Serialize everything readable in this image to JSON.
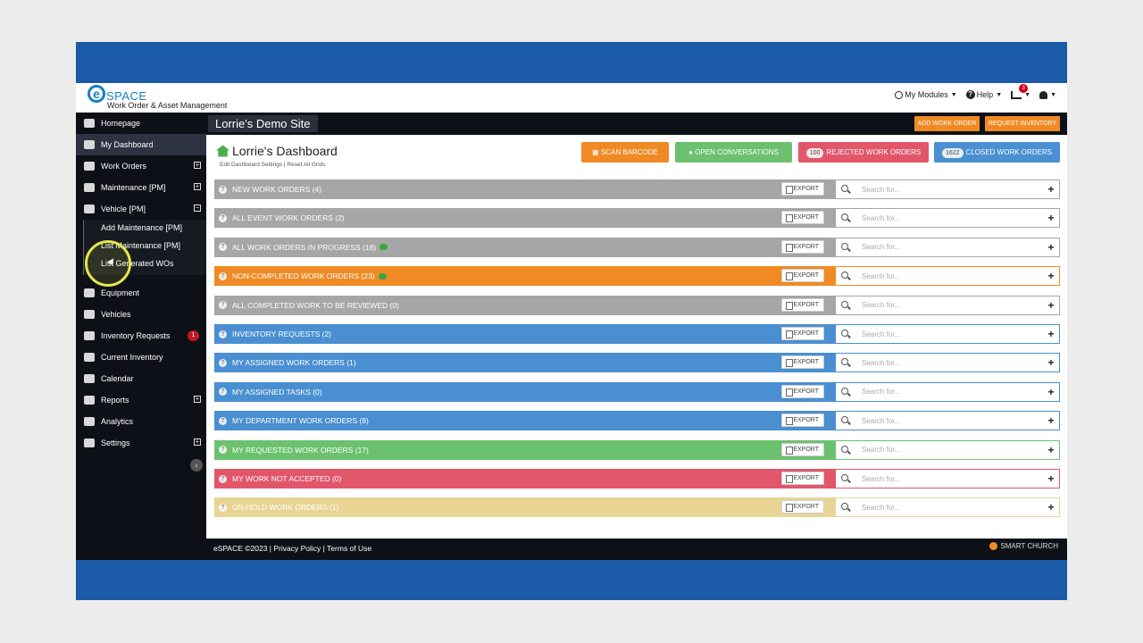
{
  "header": {
    "logo_text": "SPACE",
    "logo_letter": "e",
    "tagline": "Work Order & Asset Management",
    "my_modules": "My Modules",
    "help": "Help",
    "cart_count": "3"
  },
  "sidebar": {
    "items": [
      {
        "label": "Homepage",
        "icon": "home-icon"
      },
      {
        "label": "My Dashboard",
        "icon": "dashboard-icon"
      },
      {
        "label": "Work Orders",
        "icon": "table-icon"
      },
      {
        "label": "Maintenance [PM]",
        "icon": "wrench-icon"
      },
      {
        "label": "Vehicle [PM]",
        "icon": "car-icon"
      },
      {
        "label": "Equipment",
        "icon": "tools-icon"
      },
      {
        "label": "Vehicles",
        "icon": "car-icon"
      },
      {
        "label": "Inventory Requests",
        "icon": "document-icon",
        "badge": "1"
      },
      {
        "label": "Current Inventory",
        "icon": "bank-icon"
      },
      {
        "label": "Calendar",
        "icon": "calendar-icon"
      },
      {
        "label": "Reports",
        "icon": "reports-icon"
      },
      {
        "label": "Analytics",
        "icon": "pie-chart-icon"
      },
      {
        "label": "Settings",
        "icon": "gear-icon"
      }
    ],
    "sub_items": [
      "Add Maintenance [PM]",
      "List Maintenance [PM]",
      "List Generated WOs"
    ],
    "expand": "⊞",
    "collapse": "⊟"
  },
  "site": {
    "title": "Lorrie's Demo Site",
    "add_work_order": "ADD WORK ORDER",
    "request_inventory": "REQUEST INVENTORY"
  },
  "dashboard": {
    "title": "Lorrie's Dashboard",
    "edit_settings": "Edit Dashboard Settings |",
    "reset_grids": "Reset All Grids",
    "scan_barcode": "SCAN BARCODE",
    "open_conversations": "OPEN CONVERSATIONS",
    "rejected_count": "100",
    "rejected_label": "REJECTED WORK ORDERS",
    "closed_count": "1622",
    "closed_label": "CLOSED WORK ORDERS",
    "export_label": "EXPORT",
    "search_placeholder": "Search for...",
    "rows": [
      {
        "label": "NEW WORK ORDERS (4)",
        "color": "#a6a6a6",
        "chat": false
      },
      {
        "label": "ALL EVENT WORK ORDERS (2)",
        "color": "#a6a6a6",
        "chat": false
      },
      {
        "label": "ALL WORK ORDERS IN PROGRESS (18)",
        "color": "#a6a6a6",
        "chat": true
      },
      {
        "label": "NON-COMPLETED WORK ORDERS (23)",
        "color": "#f08a24",
        "chat": true
      },
      {
        "label": "ALL COMPLETED WORK TO BE REVIEWED (0)",
        "color": "#a6a6a6",
        "chat": false
      },
      {
        "label": "INVENTORY REQUESTS (2)",
        "color": "#4a8fd1",
        "chat": false
      },
      {
        "label": "MY ASSIGNED WORK ORDERS (1)",
        "color": "#4a8fd1",
        "chat": false
      },
      {
        "label": "MY ASSIGNED TASKS (0)",
        "color": "#4a8fd1",
        "chat": false
      },
      {
        "label": "MY DEPARTMENT WORK ORDERS (8)",
        "color": "#4a8fd1",
        "chat": false
      },
      {
        "label": "MY REQUESTED WORK ORDERS (17)",
        "color": "#6cc16f",
        "chat": false
      },
      {
        "label": "MY WORK NOT ACCEPTED (0)",
        "color": "#e2566a",
        "chat": false
      },
      {
        "label": "ON-HOLD WORK ORDERS (1)",
        "color": "#e8d596",
        "chat": false
      }
    ]
  },
  "footer": {
    "text": "eSPACE ©2023 | Privacy Policy | Terms of Use",
    "brand": "SMART CHURCH"
  },
  "colors": {
    "frame": "#1a5aa7",
    "sidebar": "#0d1117",
    "orange": "#f08a24",
    "green": "#6cc16f",
    "red": "#e2566a",
    "blue": "#4a8fd1"
  }
}
